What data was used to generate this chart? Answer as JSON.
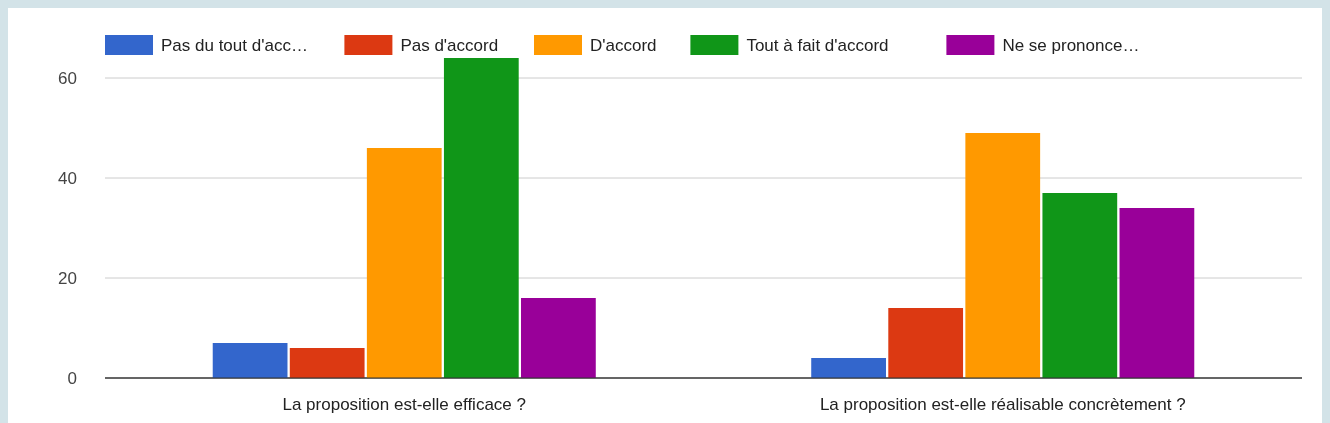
{
  "chart_data": {
    "type": "bar",
    "categories": [
      "La proposition est-elle efficace ?",
      "La proposition est-elle réalisable concrètement ?"
    ],
    "series": [
      {
        "name": "Pas du tout d'acc…",
        "color": "#3366cc",
        "values": [
          7,
          4
        ]
      },
      {
        "name": "Pas d'accord",
        "color": "#dc3912",
        "values": [
          6,
          14
        ]
      },
      {
        "name": "D'accord",
        "color": "#ff9900",
        "values": [
          46,
          49
        ]
      },
      {
        "name": "Tout à fait d'accord",
        "color": "#109618",
        "values": [
          64,
          37
        ]
      },
      {
        "name": "Ne se prononce…",
        "color": "#990099",
        "values": [
          16,
          34
        ]
      }
    ],
    "ylim": [
      0,
      64
    ],
    "yticks": [
      0,
      20,
      40,
      60
    ],
    "grid": "y",
    "legend": "top"
  }
}
